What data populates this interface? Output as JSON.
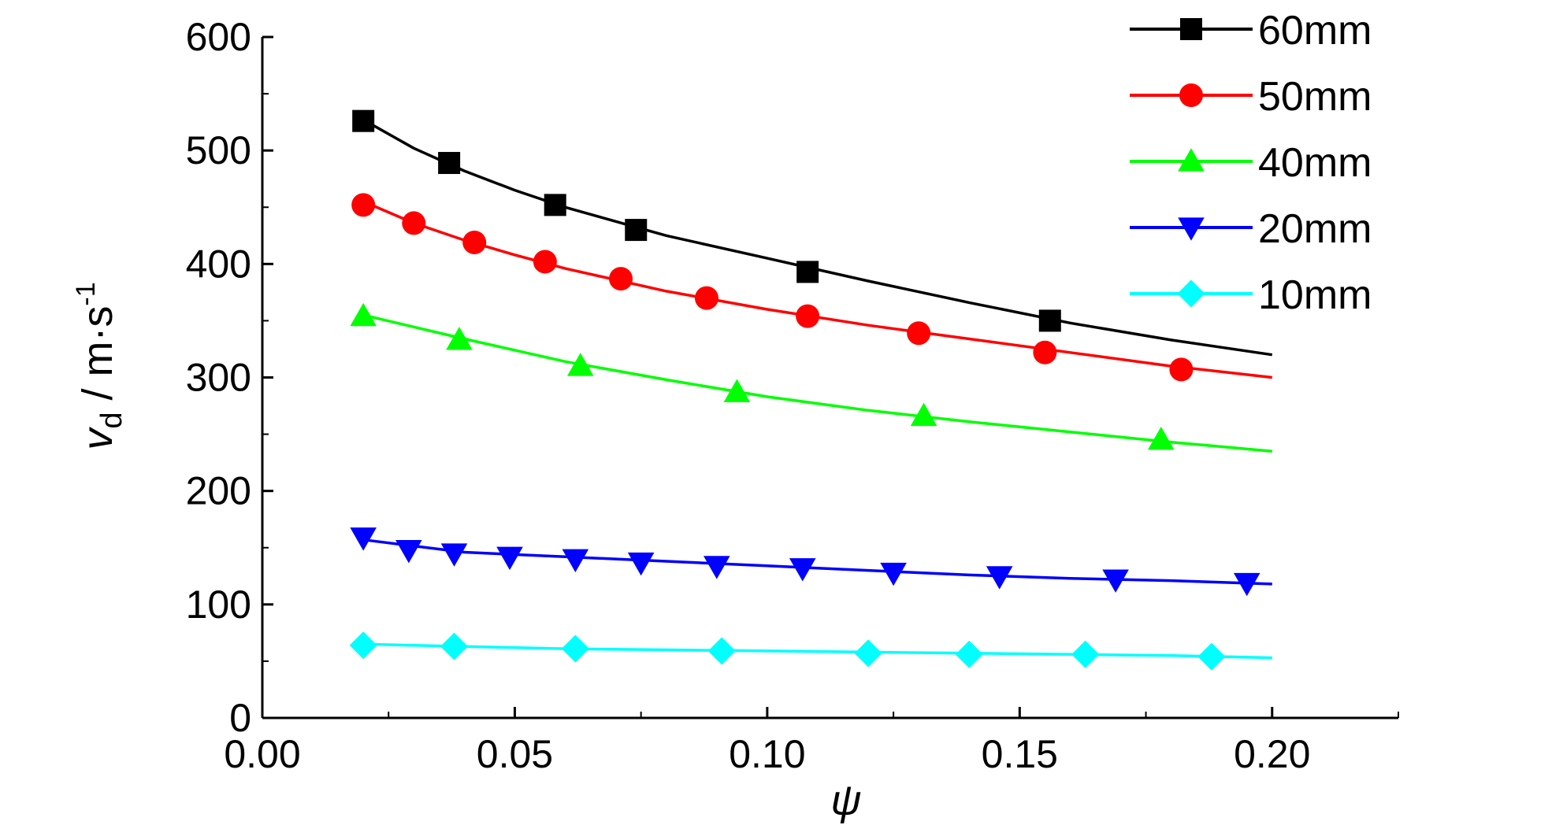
{
  "chart_data": {
    "type": "line",
    "xlabel": "ψ",
    "ylabel": {
      "symbol": "v",
      "subscript": "d",
      "unit": " / m·s",
      "unit_exponent": "-1"
    },
    "xlim": [
      0.0,
      0.225
    ],
    "ylim": [
      0,
      600
    ],
    "x_ticks": [
      0.0,
      0.05,
      0.1,
      0.15,
      0.2
    ],
    "x_tick_labels": [
      "0.00",
      "0.05",
      "0.10",
      "0.15",
      "0.20"
    ],
    "y_ticks": [
      0,
      100,
      200,
      300,
      400,
      500,
      600
    ],
    "y_tick_labels": [
      "0",
      "100",
      "200",
      "300",
      "400",
      "500",
      "600"
    ],
    "grid": false,
    "legend_position": "top-right",
    "series": [
      {
        "name": "60mm",
        "color": "#000000",
        "marker": "square",
        "curve": [
          [
            0.02,
            527
          ],
          [
            0.03,
            502
          ],
          [
            0.04,
            482
          ],
          [
            0.05,
            465
          ],
          [
            0.06,
            450
          ],
          [
            0.08,
            425
          ],
          [
            0.1,
            405
          ],
          [
            0.12,
            385
          ],
          [
            0.14,
            366
          ],
          [
            0.16,
            348
          ],
          [
            0.18,
            333
          ],
          [
            0.2,
            320
          ]
        ],
        "points": [
          [
            0.02,
            526
          ],
          [
            0.037,
            489
          ],
          [
            0.058,
            452
          ],
          [
            0.074,
            430
          ],
          [
            0.108,
            393
          ],
          [
            0.156,
            350
          ]
        ]
      },
      {
        "name": "50mm",
        "color": "#ff0000",
        "marker": "circle",
        "curve": [
          [
            0.02,
            455
          ],
          [
            0.03,
            436
          ],
          [
            0.04,
            421
          ],
          [
            0.05,
            408
          ],
          [
            0.06,
            396
          ],
          [
            0.08,
            376
          ],
          [
            0.1,
            360
          ],
          [
            0.12,
            346
          ],
          [
            0.14,
            334
          ],
          [
            0.16,
            322
          ],
          [
            0.18,
            310
          ],
          [
            0.2,
            300
          ]
        ],
        "points": [
          [
            0.02,
            452
          ],
          [
            0.03,
            436
          ],
          [
            0.042,
            419
          ],
          [
            0.056,
            402
          ],
          [
            0.071,
            387
          ],
          [
            0.088,
            370
          ],
          [
            0.108,
            354
          ],
          [
            0.13,
            339
          ],
          [
            0.155,
            322
          ],
          [
            0.182,
            307
          ]
        ]
      },
      {
        "name": "40mm",
        "color": "#00ff00",
        "marker": "triangle-up",
        "curve": [
          [
            0.02,
            355
          ],
          [
            0.04,
            334
          ],
          [
            0.06,
            314
          ],
          [
            0.08,
            298
          ],
          [
            0.1,
            283
          ],
          [
            0.12,
            271
          ],
          [
            0.14,
            261
          ],
          [
            0.16,
            252
          ],
          [
            0.18,
            243
          ],
          [
            0.2,
            235
          ]
        ],
        "points": [
          [
            0.02,
            354
          ],
          [
            0.039,
            333
          ],
          [
            0.063,
            310
          ],
          [
            0.094,
            287
          ],
          [
            0.131,
            266
          ],
          [
            0.178,
            245
          ]
        ]
      },
      {
        "name": "20mm",
        "color": "#0000ff",
        "marker": "triangle-down",
        "curve": [
          [
            0.02,
            157
          ],
          [
            0.04,
            146
          ],
          [
            0.06,
            142
          ],
          [
            0.08,
            138
          ],
          [
            0.1,
            134
          ],
          [
            0.12,
            130
          ],
          [
            0.14,
            126
          ],
          [
            0.16,
            123
          ],
          [
            0.18,
            121
          ],
          [
            0.2,
            118
          ]
        ],
        "points": [
          [
            0.02,
            159
          ],
          [
            0.029,
            148
          ],
          [
            0.038,
            145
          ],
          [
            0.049,
            142
          ],
          [
            0.062,
            140
          ],
          [
            0.075,
            137
          ],
          [
            0.09,
            134
          ],
          [
            0.107,
            132
          ],
          [
            0.125,
            128
          ],
          [
            0.146,
            125
          ],
          [
            0.169,
            122
          ],
          [
            0.195,
            119
          ]
        ],
        "legend_only": false
      },
      {
        "name": "10mm",
        "color": "#00ffff",
        "marker": "diamond",
        "curve": [
          [
            0.02,
            65
          ],
          [
            0.04,
            63
          ],
          [
            0.06,
            61
          ],
          [
            0.08,
            60
          ],
          [
            0.1,
            59
          ],
          [
            0.12,
            58
          ],
          [
            0.14,
            57
          ],
          [
            0.16,
            56
          ],
          [
            0.18,
            55
          ],
          [
            0.2,
            53
          ]
        ],
        "points": [
          [
            0.02,
            64
          ],
          [
            0.038,
            63
          ],
          [
            0.062,
            61
          ],
          [
            0.091,
            59
          ],
          [
            0.12,
            57
          ],
          [
            0.14,
            56
          ],
          [
            0.163,
            56
          ],
          [
            0.188,
            54
          ]
        ]
      }
    ]
  }
}
